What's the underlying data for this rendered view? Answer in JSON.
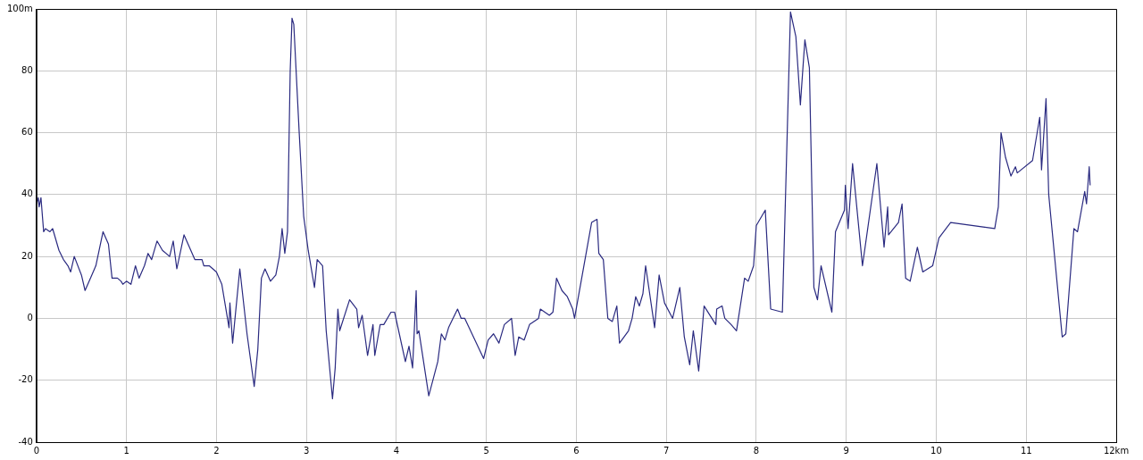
{
  "chart_data": {
    "type": "line",
    "x": [
      0,
      0.02,
      0.03,
      0.05,
      0.08,
      0.1,
      0.15,
      0.18,
      0.25,
      0.3,
      0.35,
      0.38,
      0.42,
      0.5,
      0.54,
      0.6,
      0.66,
      0.74,
      0.8,
      0.84,
      0.9,
      0.94,
      0.96,
      1.0,
      1.05,
      1.1,
      1.14,
      1.2,
      1.24,
      1.28,
      1.34,
      1.4,
      1.48,
      1.52,
      1.56,
      1.64,
      1.76,
      1.84,
      1.86,
      1.92,
      2.0,
      2.06,
      2.14,
      2.15,
      2.18,
      2.26,
      2.34,
      2.42,
      2.46,
      2.5,
      2.54,
      2.6,
      2.66,
      2.7,
      2.73,
      2.76,
      2.79,
      2.82,
      2.84,
      2.86,
      2.92,
      2.97,
      3.02,
      3.09,
      3.12,
      3.18,
      3.22,
      3.29,
      3.32,
      3.35,
      3.37,
      3.48,
      3.56,
      3.58,
      3.62,
      3.68,
      3.74,
      3.76,
      3.82,
      3.86,
      3.94,
      3.98,
      4.1,
      4.14,
      4.18,
      4.22,
      4.23,
      4.25,
      4.36,
      4.46,
      4.5,
      4.54,
      4.58,
      4.68,
      4.72,
      4.76,
      4.97,
      5.02,
      5.08,
      5.14,
      5.2,
      5.28,
      5.32,
      5.36,
      5.42,
      5.48,
      5.58,
      5.6,
      5.7,
      5.74,
      5.78,
      5.84,
      5.9,
      5.96,
      5.98,
      6.17,
      6.23,
      6.25,
      6.3,
      6.35,
      6.4,
      6.45,
      6.48,
      6.58,
      6.62,
      6.66,
      6.7,
      6.74,
      6.77,
      6.87,
      6.92,
      6.98,
      7.07,
      7.15,
      7.2,
      7.26,
      7.3,
      7.36,
      7.42,
      7.55,
      7.56,
      7.62,
      7.65,
      7.72,
      7.78,
      7.87,
      7.91,
      7.97,
      8.0,
      8.1,
      8.16,
      8.29,
      8.38,
      8.44,
      8.49,
      8.54,
      8.59,
      8.64,
      8.68,
      8.72,
      8.84,
      8.88,
      8.98,
      8.99,
      9.02,
      9.07,
      9.18,
      9.34,
      9.42,
      9.46,
      9.47,
      9.58,
      9.62,
      9.66,
      9.71,
      9.79,
      9.85,
      9.96,
      10.03,
      10.16,
      10.65,
      10.69,
      10.72,
      10.77,
      10.83,
      10.88,
      10.9,
      11.07,
      11.15,
      11.17,
      11.22,
      11.25,
      11.4,
      11.44,
      11.53,
      11.57,
      11.65,
      11.67,
      11.7,
      11.71
    ],
    "series": [
      {
        "color": "#2a2a80",
        "values": [
          37,
          39,
          36,
          39,
          28,
          29,
          28,
          29,
          22,
          19,
          17,
          15,
          20,
          14,
          9,
          13,
          17,
          28,
          24,
          13,
          13,
          12,
          11,
          12,
          11,
          17,
          13,
          17,
          21,
          19,
          25,
          22,
          20,
          25,
          16,
          27,
          19,
          19,
          17,
          17,
          15,
          11,
          -3,
          5,
          -8,
          16,
          -5,
          -22,
          -10,
          13,
          16,
          12,
          14,
          20,
          29,
          21,
          28,
          80,
          97,
          95,
          60,
          33,
          22,
          10,
          19,
          17,
          -4,
          -26,
          -16,
          3,
          -4,
          6,
          3,
          -3,
          1,
          -12,
          -2,
          -12,
          -2,
          -2,
          2,
          2,
          -14,
          -9,
          -16,
          9,
          -5,
          -4,
          -25,
          -14,
          -5,
          -7,
          -3,
          3,
          0,
          0,
          -13,
          -7,
          -5,
          -8,
          -2,
          0,
          -12,
          -6,
          -7,
          -2,
          0,
          3,
          1,
          2,
          13,
          9,
          7,
          3,
          0,
          31,
          32,
          21,
          19,
          0,
          -1,
          4,
          -8,
          -4,
          0,
          7,
          4,
          8,
          17,
          -3,
          14,
          5,
          0,
          10,
          -6,
          -15,
          -4,
          -17,
          4,
          -2,
          3,
          4,
          0,
          -2,
          -4,
          13,
          12,
          17,
          30,
          35,
          3,
          2,
          99,
          91,
          69,
          90,
          81,
          10,
          6,
          17,
          2,
          28,
          35,
          43,
          29,
          50,
          17,
          50,
          23,
          36,
          27,
          31,
          37,
          13,
          12,
          23,
          15,
          17,
          26,
          31,
          29,
          36,
          60,
          52,
          46,
          49,
          47,
          51,
          65,
          48,
          71,
          40,
          -6,
          -5,
          29,
          28,
          41,
          37,
          49,
          43
        ]
      }
    ],
    "xlim": [
      0,
      12
    ],
    "xticks": [
      0,
      1,
      2,
      3,
      4,
      5,
      6,
      7,
      8,
      9,
      10,
      11,
      {
        "value": 12,
        "label": "12km"
      }
    ],
    "ylim": [
      -40,
      100
    ],
    "yticks": [
      -40,
      -20,
      0,
      20,
      40,
      60,
      80,
      {
        "value": 100,
        "label": "100m"
      }
    ],
    "grid": true,
    "legend": false,
    "marker": "none",
    "line_style": "solid"
  }
}
